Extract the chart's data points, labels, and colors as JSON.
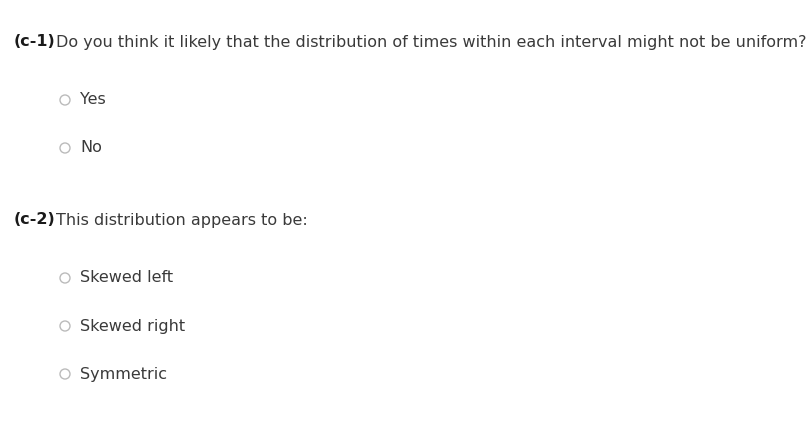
{
  "background_color": "#ffffff",
  "q1_label": "(c-1)",
  "q1_text": "Do you think it likely that the distribution of times within each interval might not be uniform?",
  "q1_options": [
    "Yes",
    "No"
  ],
  "q2_label": "(c-2)",
  "q2_text": "This distribution appears to be:",
  "q2_options": [
    "Skewed left",
    "Skewed right",
    "Symmetric"
  ],
  "label_fontsize": 11.5,
  "text_fontsize": 11.5,
  "option_fontsize": 11.5,
  "radio_color": "#bbbbbb",
  "text_color": "#3a3a3a",
  "label_color": "#1a1a1a",
  "fig_width": 8.08,
  "fig_height": 4.38,
  "dpi": 100
}
